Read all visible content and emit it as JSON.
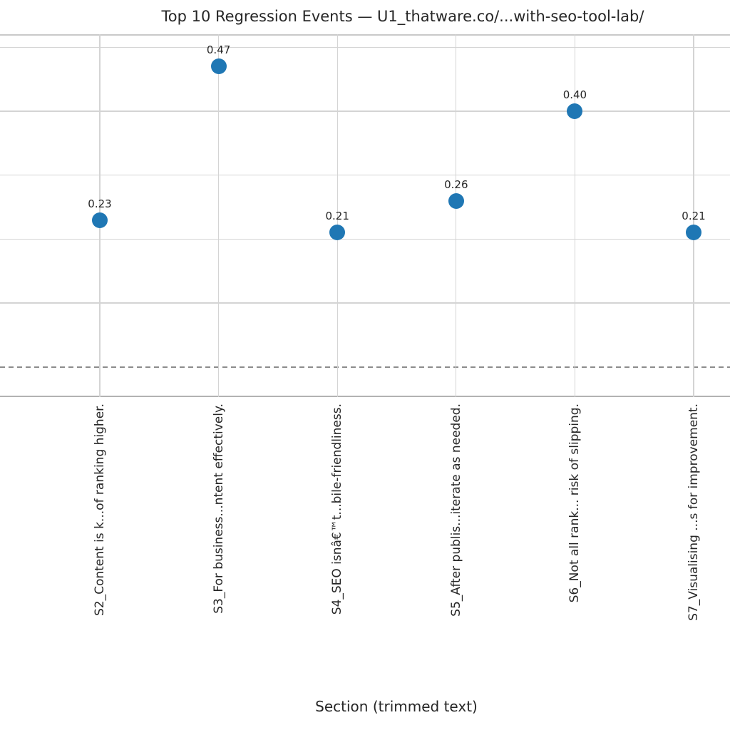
{
  "chart": {
    "title": "Top 10 Regression Events — U1_thatware.co/...with-seo-tool-lab/",
    "xlabel": "Section (trimmed text)"
  },
  "chart_data": {
    "type": "scatter",
    "title": "Top 10 Regression Events — U1_thatware.co/...with-seo-tool-lab/",
    "xlabel": "Section (trimmed text)",
    "ylabel": "",
    "legend": "none",
    "grid": true,
    "categories": [
      "S2_Content is k...of ranking higher.",
      "S3_For business...ntent effectively.",
      "S4_SEO isnâ€™t...bile-friendliness.",
      "S5_After publis...iterate as needed.",
      "S6_Not all rank... risk of slipping.",
      "S7_Visualising ...s for improvement."
    ],
    "values": [
      0.23,
      0.47,
      0.21,
      0.26,
      0.4,
      0.21
    ],
    "value_labels": [
      "0.23",
      "0.47",
      "0.21",
      "0.26",
      "0.40",
      "0.21"
    ],
    "ylim": [
      -0.047,
      0.5205
    ],
    "y_gridlines": [
      0.1,
      0.2,
      0.3,
      0.4,
      0.5
    ],
    "zero_reference_line": 0.0,
    "zero_line_style": "dashed",
    "marker_color": "#1f77b4",
    "grid_color": "#d4d4d4",
    "spine_color": "#c9c9c9",
    "zero_line_color": "#8c8c8c",
    "text_color": "#262626"
  }
}
